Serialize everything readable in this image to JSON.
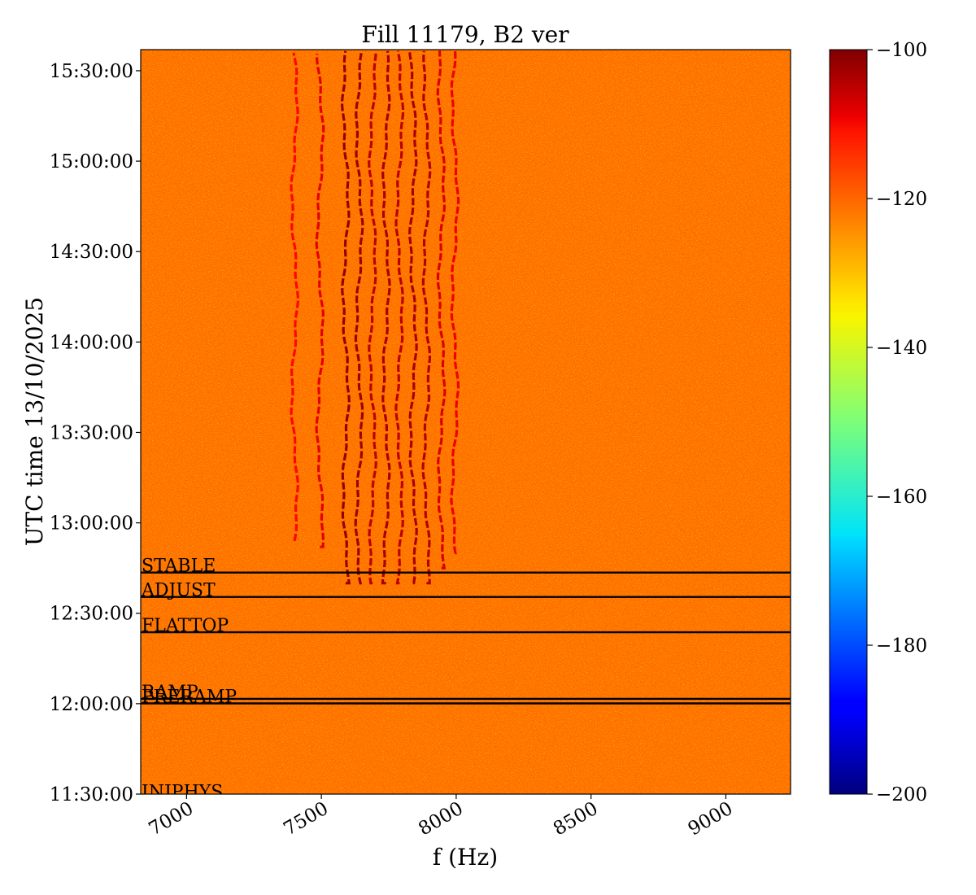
{
  "chart_data": {
    "type": "heatmap",
    "title": "Fill 11179, B2 ver",
    "xlabel": "f (Hz)",
    "ylabel": "UTC time 13/10/2025",
    "xlim": [
      6830,
      9240
    ],
    "ylim_minutes": [
      690,
      937
    ],
    "x_ticks": [
      {
        "value": 7000,
        "label": "7000"
      },
      {
        "value": 7500,
        "label": "7500"
      },
      {
        "value": 8000,
        "label": "8000"
      },
      {
        "value": 8500,
        "label": "8500"
      },
      {
        "value": 9000,
        "label": "9000"
      }
    ],
    "y_ticks": [
      {
        "minutes": 690,
        "label": "11:30:00"
      },
      {
        "minutes": 720,
        "label": "12:00:00"
      },
      {
        "minutes": 750,
        "label": "12:30:00"
      },
      {
        "minutes": 780,
        "label": "13:00:00"
      },
      {
        "minutes": 810,
        "label": "13:30:00"
      },
      {
        "minutes": 840,
        "label": "14:00:00"
      },
      {
        "minutes": 870,
        "label": "14:30:00"
      },
      {
        "minutes": 900,
        "label": "15:00:00"
      },
      {
        "minutes": 930,
        "label": "15:30:00"
      }
    ],
    "colorbar": {
      "colormap": "jet",
      "range": [
        -200,
        -100
      ],
      "ticks": [
        {
          "value": -100,
          "label": "−100"
        },
        {
          "value": -120,
          "label": "−120"
        },
        {
          "value": -140,
          "label": "−140"
        },
        {
          "value": -160,
          "label": "−160"
        },
        {
          "value": -180,
          "label": "−180"
        },
        {
          "value": -200,
          "label": "−200"
        }
      ]
    },
    "background_level": -123,
    "beam_modes": [
      {
        "label": "INJPHYS",
        "minutes": 688.5
      },
      {
        "label": "PRERAMP",
        "minutes": 720.1
      },
      {
        "label": "RAMP",
        "minutes": 721.6
      },
      {
        "label": "FLATTOP",
        "minutes": 743.7
      },
      {
        "label": "ADJUST",
        "minutes": 755.4
      },
      {
        "label": "STABLE",
        "minutes": 763.5
      }
    ],
    "tune_lines": [
      {
        "freq": 7400,
        "start_minutes": 774,
        "level": -113
      },
      {
        "freq": 7495,
        "start_minutes": 772,
        "level": -110
      },
      {
        "freq": 7590,
        "start_minutes": 760,
        "level": -102
      },
      {
        "freq": 7640,
        "start_minutes": 760,
        "level": -103
      },
      {
        "freq": 7690,
        "start_minutes": 760,
        "level": -106
      },
      {
        "freq": 7740,
        "start_minutes": 760,
        "level": -104
      },
      {
        "freq": 7790,
        "start_minutes": 760,
        "level": -106
      },
      {
        "freq": 7840,
        "start_minutes": 760,
        "level": -104
      },
      {
        "freq": 7890,
        "start_minutes": 760,
        "level": -105
      },
      {
        "freq": 7945,
        "start_minutes": 765,
        "level": -109
      },
      {
        "freq": 7995,
        "start_minutes": 770,
        "level": -111
      }
    ]
  }
}
